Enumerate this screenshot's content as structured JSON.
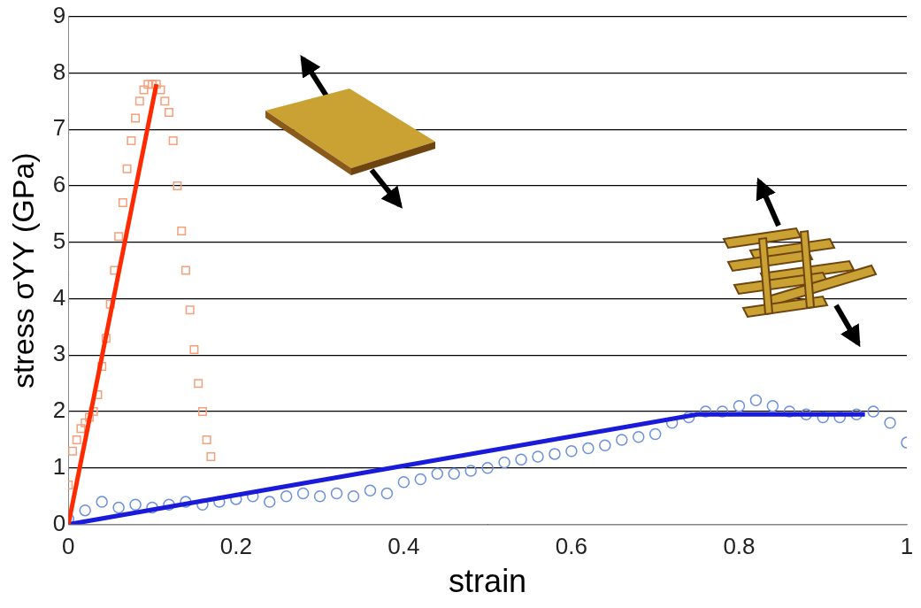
{
  "chart_data": {
    "type": "scatter",
    "x_label": "strain",
    "y_label": "stress σYY (GPa)",
    "xlim": [
      0,
      1
    ],
    "xticks": [
      0,
      0.2,
      0.4,
      0.6,
      0.8,
      1
    ],
    "ylim": [
      0,
      9
    ],
    "yticks": [
      0,
      1,
      2,
      3,
      4,
      5,
      6,
      7,
      8,
      9
    ],
    "grid": true,
    "series": [
      {
        "type": "scatter",
        "color": "#f5a07a",
        "marker": "square",
        "x": [
          0,
          0.005,
          0.01,
          0.015,
          0.02,
          0.025,
          0.03,
          0.035,
          0.04,
          0.045,
          0.05,
          0.055,
          0.06,
          0.065,
          0.07,
          0.075,
          0.08,
          0.085,
          0.09,
          0.095,
          0.1,
          0.105,
          0.11,
          0.115,
          0.12,
          0.125,
          0.13,
          0.135,
          0.14,
          0.145,
          0.15,
          0.155,
          0.16,
          0.165,
          0.17
        ],
        "values": [
          0.7,
          1.3,
          1.5,
          1.7,
          1.8,
          1.9,
          2.0,
          2.3,
          2.8,
          3.3,
          3.9,
          4.5,
          5.1,
          5.7,
          6.3,
          6.8,
          7.2,
          7.5,
          7.7,
          7.8,
          7.8,
          7.8,
          7.7,
          7.5,
          7.3,
          6.8,
          6.0,
          5.2,
          4.5,
          3.8,
          3.1,
          2.5,
          2.0,
          1.5,
          1.2
        ]
      },
      {
        "type": "scatter",
        "color": "#6a8fe0",
        "marker": "circle",
        "x": [
          0,
          0.02,
          0.04,
          0.06,
          0.08,
          0.1,
          0.12,
          0.14,
          0.16,
          0.18,
          0.2,
          0.22,
          0.24,
          0.26,
          0.28,
          0.3,
          0.32,
          0.34,
          0.36,
          0.38,
          0.4,
          0.42,
          0.44,
          0.46,
          0.48,
          0.5,
          0.52,
          0.54,
          0.56,
          0.58,
          0.6,
          0.62,
          0.64,
          0.66,
          0.68,
          0.7,
          0.72,
          0.74,
          0.76,
          0.78,
          0.8,
          0.82,
          0.84,
          0.86,
          0.88,
          0.9,
          0.92,
          0.94,
          0.96,
          0.98,
          1.0
        ],
        "values": [
          0.1,
          0.25,
          0.4,
          0.3,
          0.35,
          0.3,
          0.35,
          0.4,
          0.35,
          0.4,
          0.45,
          0.5,
          0.4,
          0.5,
          0.55,
          0.5,
          0.55,
          0.5,
          0.6,
          0.55,
          0.75,
          0.8,
          0.9,
          0.9,
          0.95,
          1.0,
          1.1,
          1.15,
          1.2,
          1.25,
          1.3,
          1.35,
          1.4,
          1.5,
          1.55,
          1.6,
          1.8,
          1.9,
          2.0,
          2.0,
          2.1,
          2.2,
          2.1,
          2.0,
          1.95,
          1.9,
          1.9,
          1.95,
          2.0,
          1.8,
          1.45
        ]
      },
      {
        "type": "line",
        "color": "#ff2a00",
        "marker": "none",
        "line_style": "solid",
        "x": [
          0,
          0.105
        ],
        "values": [
          0,
          7.8
        ]
      },
      {
        "type": "line",
        "color": "#1a1adb",
        "marker": "none",
        "line_style": "solid",
        "x": [
          0,
          0.75,
          0.95
        ],
        "values": [
          0,
          1.95,
          1.95
        ]
      }
    ]
  }
}
